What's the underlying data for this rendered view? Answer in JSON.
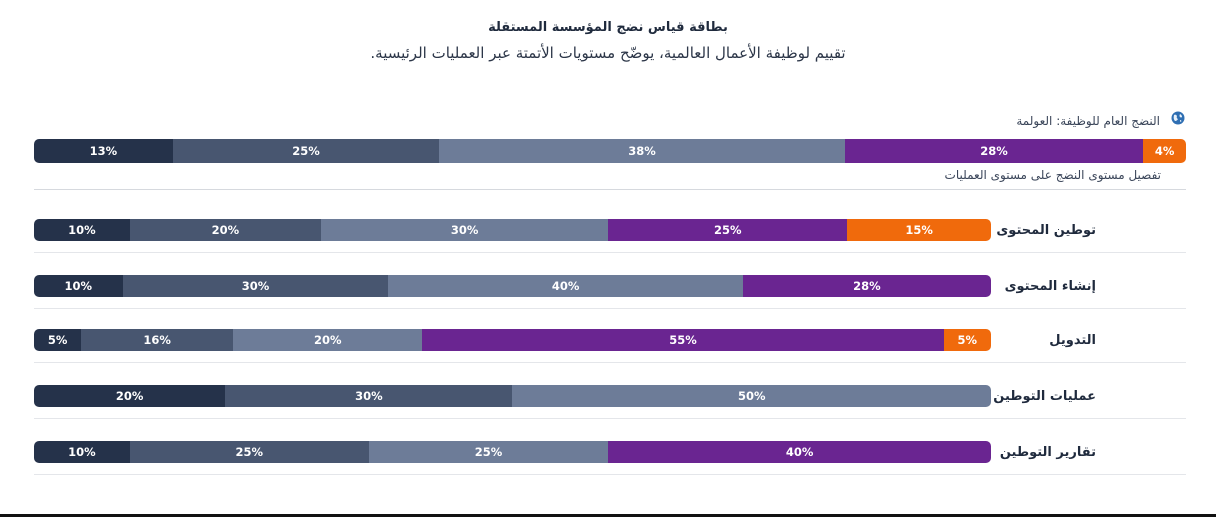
{
  "title": "بطاقة قياس نضج المؤسسة المستقلة",
  "subtitle": "تقييم لوظيفة الأعمال العالمية، يوضّح مستويات الأتمتة عبر العمليات الرئيسية.",
  "overall_label": "النضج العام للوظيفة: العولمة",
  "breakdown_label": "تفصيل مستوى النضج على مستوى العمليات",
  "globe_icon": "globe-icon",
  "colors": {
    "level1": "#25324a",
    "level2": "#485670",
    "level3": "#6d7c98",
    "level4": "#6a2591",
    "level5": "#f06a0c"
  },
  "chart_data": {
    "type": "bar",
    "orientation": "horizontal",
    "stacked": true,
    "normalized_percent": true,
    "title": "بطاقة قياس نضج المؤسسة المستقلة",
    "overall": {
      "label": "النضج العام للوظيفة: العولمة",
      "values": [
        13,
        25,
        38,
        28,
        4
      ]
    },
    "rows": [
      {
        "label": "توطين المحتوى",
        "values": [
          10,
          20,
          30,
          25,
          15
        ]
      },
      {
        "label": "إنشاء المحتوى",
        "values": [
          10,
          30,
          40,
          28,
          0
        ]
      },
      {
        "label": "التدويل",
        "values": [
          5,
          16,
          20,
          55,
          5
        ]
      },
      {
        "label": "عمليات التوطين",
        "values": [
          20,
          30,
          50,
          0,
          0
        ]
      },
      {
        "label": "تقارير التوطين",
        "values": [
          10,
          25,
          25,
          40,
          0
        ]
      }
    ]
  }
}
